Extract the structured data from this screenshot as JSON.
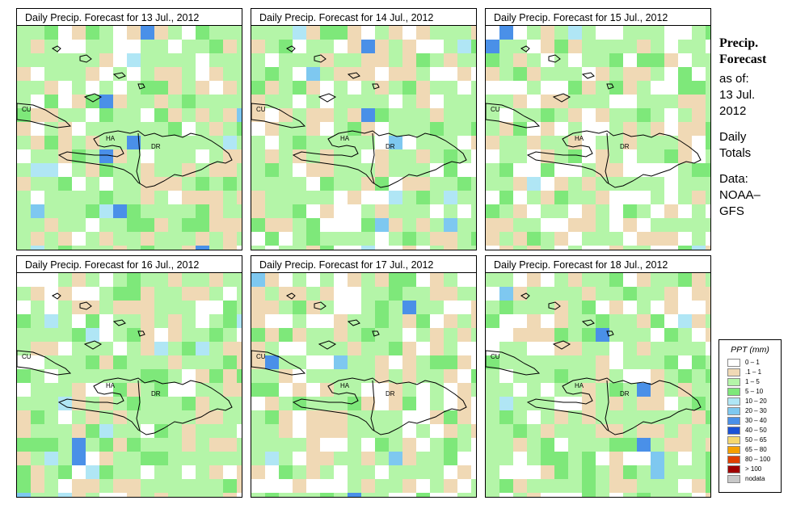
{
  "panels": [
    {
      "title": "Daily Precip. Forecast for  13 Jul., 2012",
      "seed": 13,
      "wet": 0.85
    },
    {
      "title": "Daily Precip. Forecast for  14 Jul., 2012",
      "seed": 14,
      "wet": 0.65
    },
    {
      "title": "Daily Precip. Forecast for  15 Jul., 2012",
      "seed": 15,
      "wet": 0.3
    },
    {
      "title": "Daily Precip. Forecast for  16 Jul., 2012",
      "seed": 16,
      "wet": 0.6
    },
    {
      "title": "Daily Precip. Forecast for  17 Jul., 2012",
      "seed": 17,
      "wet": 0.35
    },
    {
      "title": "Daily Precip. Forecast for  18 Jul., 2012",
      "seed": 18,
      "wet": 0.4
    }
  ],
  "map_labels": {
    "cuba": "CU",
    "haiti": "HA",
    "dr": "DR"
  },
  "sidebar": {
    "title_line1": "Precip.",
    "title_line2": "Forecast",
    "as_of": "as of:",
    "date_line1": "13 Jul.",
    "date_line2": "2012",
    "daily_line1": "Daily",
    "daily_line2": "Totals",
    "data_line1": "Data:",
    "data_line2": "NOAA–",
    "data_line3": "GFS"
  },
  "legend": {
    "title": "PPT (mm)",
    "items": [
      {
        "label": "0 – 1",
        "color": "#ffffff"
      },
      {
        "label": ".1 – 1",
        "color": "#f0d9b5"
      },
      {
        "label": "1 – 5",
        "color": "#b4f5a8"
      },
      {
        "label": "5 – 10",
        "color": "#7ee87a"
      },
      {
        "label": "10 – 20",
        "color": "#b0e6f5"
      },
      {
        "label": "20 – 30",
        "color": "#7ec8f0"
      },
      {
        "label": "30 – 40",
        "color": "#4a90e8"
      },
      {
        "label": "40 – 50",
        "color": "#1a52d6"
      },
      {
        "label": "50 – 65",
        "color": "#f5d76e"
      },
      {
        "label": "65 – 80",
        "color": "#f5a000"
      },
      {
        "label": "80 – 100",
        "color": "#e04000"
      },
      {
        "label": "> 100",
        "color": "#a00000"
      },
      {
        "label": "nodata",
        "color": "#c8c8c8"
      }
    ]
  }
}
